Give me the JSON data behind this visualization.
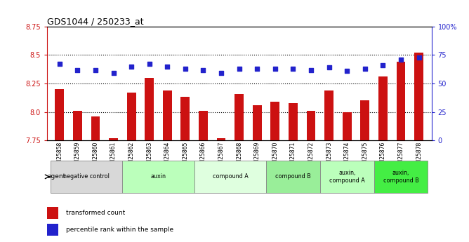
{
  "title": "GDS1044 / 250233_at",
  "samples": [
    "GSM25858",
    "GSM25859",
    "GSM25860",
    "GSM25861",
    "GSM25862",
    "GSM25863",
    "GSM25864",
    "GSM25865",
    "GSM25866",
    "GSM25867",
    "GSM25868",
    "GSM25869",
    "GSM25870",
    "GSM25871",
    "GSM25872",
    "GSM25873",
    "GSM25874",
    "GSM25875",
    "GSM25876",
    "GSM25877",
    "GSM25878"
  ],
  "bar_values": [
    8.2,
    8.01,
    7.96,
    7.77,
    8.17,
    8.3,
    8.19,
    8.13,
    8.01,
    7.77,
    8.16,
    8.06,
    8.09,
    8.08,
    8.01,
    8.19,
    8.0,
    8.1,
    8.31,
    8.44,
    8.52
  ],
  "dot_values": [
    67,
    62,
    62,
    59,
    65,
    67,
    65,
    63,
    62,
    59,
    63,
    63,
    63,
    63,
    62,
    64,
    61,
    63,
    66,
    71,
    73
  ],
  "ylim_left": [
    7.75,
    8.75
  ],
  "ylim_right": [
    0,
    100
  ],
  "yticks_left": [
    7.75,
    8.0,
    8.25,
    8.5,
    8.75
  ],
  "yticks_right": [
    0,
    25,
    50,
    75,
    100
  ],
  "ytick_labels_right": [
    "0",
    "25",
    "50",
    "75",
    "100%"
  ],
  "bar_color": "#cc1111",
  "dot_color": "#2222cc",
  "gridline_values": [
    8.0,
    8.25,
    8.5
  ],
  "groups": [
    {
      "label": "negative control",
      "start": 0,
      "end": 4,
      "color": "#d8d8d8"
    },
    {
      "label": "auxin",
      "start": 4,
      "end": 8,
      "color": "#bbffbb"
    },
    {
      "label": "compound A",
      "start": 8,
      "end": 12,
      "color": "#dfffdf"
    },
    {
      "label": "compound B",
      "start": 12,
      "end": 15,
      "color": "#99ee99"
    },
    {
      "label": "auxin,\ncompound A",
      "start": 15,
      "end": 18,
      "color": "#bbffbb"
    },
    {
      "label": "auxin,\ncompound B",
      "start": 18,
      "end": 21,
      "color": "#44ee44"
    }
  ],
  "legend_items": [
    {
      "label": "transformed count",
      "color": "#cc1111"
    },
    {
      "label": "percentile rank within the sample",
      "color": "#2222cc"
    }
  ],
  "fig_width": 6.68,
  "fig_height": 3.45,
  "dpi": 100
}
